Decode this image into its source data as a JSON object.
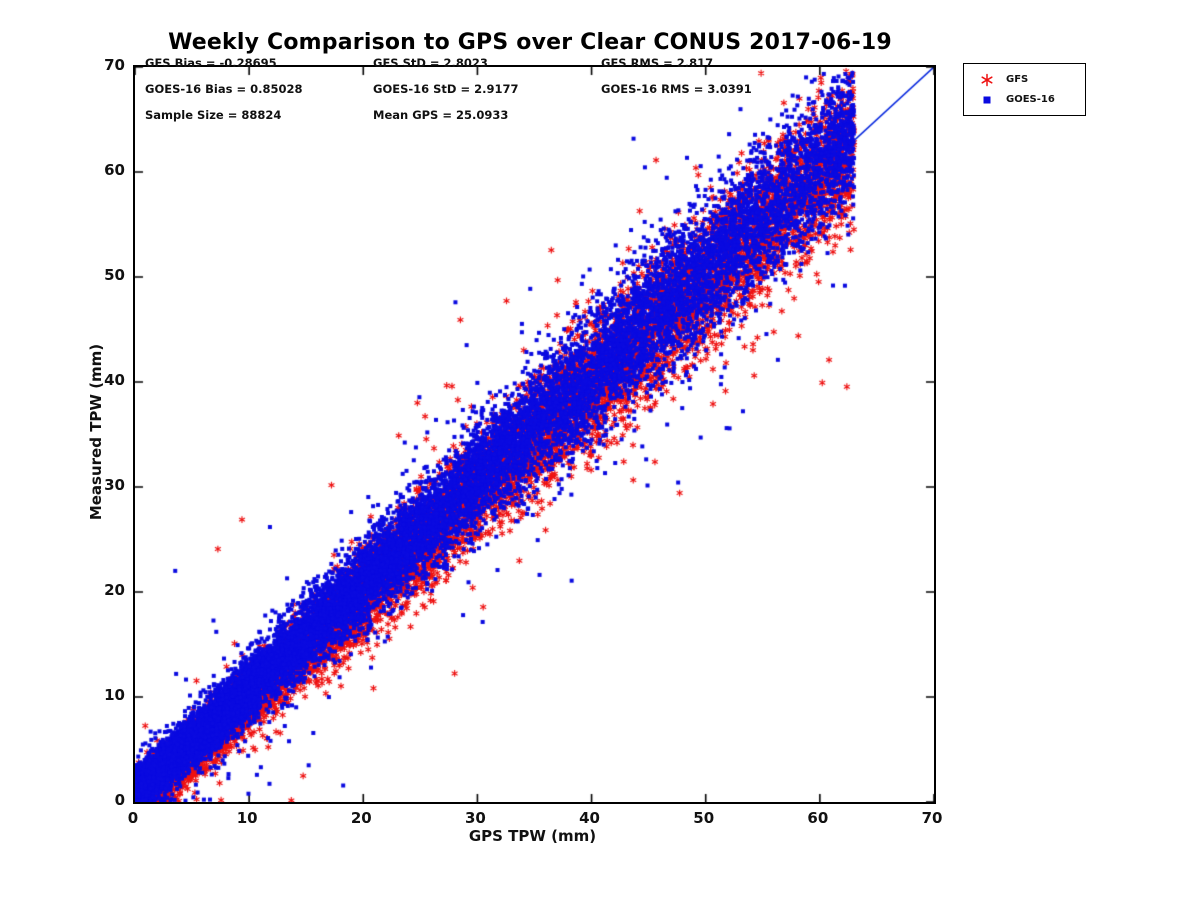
{
  "chart_data": {
    "type": "scatter",
    "title": "Weekly Comparison to GPS over Clear CONUS 2017-06-19",
    "xlabel": "GPS TPW (mm)",
    "ylabel": "Measured TPW (mm)",
    "xlim": [
      0,
      70
    ],
    "ylim": [
      0,
      70
    ],
    "x_ticks": [
      0,
      10,
      20,
      30,
      40,
      50,
      60,
      70
    ],
    "y_ticks": [
      0,
      10,
      20,
      30,
      40,
      50,
      60,
      70
    ],
    "grid": false,
    "series": [
      {
        "name": "GFS",
        "marker": "asterisk",
        "color": "#ee1111",
        "bias": -0.28695,
        "std": 2.8023,
        "rms": 2.817
      },
      {
        "name": "GOES-16",
        "marker": "filled-square",
        "color": "#0a0ae0",
        "bias": 0.85028,
        "std": 2.9177,
        "rms": 3.0391
      }
    ],
    "stats": {
      "sample_size": 88824,
      "mean_gps": 25.0933
    },
    "reference_line": {
      "type": "identity",
      "from": [
        0,
        0
      ],
      "to": [
        70,
        70
      ],
      "color": "#0022dd"
    },
    "legend": {
      "position": "outside-top-right",
      "entries": [
        "GFS",
        "GOES-16"
      ]
    },
    "annotations": [
      [
        "GFS Bias = -0.28695",
        "GFS StD = 2.8023",
        "GFS RMS = 2.817"
      ],
      [
        "GOES-16 Bias = 0.85028",
        "GOES-16 StD = 2.9177",
        "GOES-16 RMS = 3.0391"
      ],
      [
        "Sample Size = 88824",
        "Mean GPS = 25.0933"
      ]
    ]
  }
}
